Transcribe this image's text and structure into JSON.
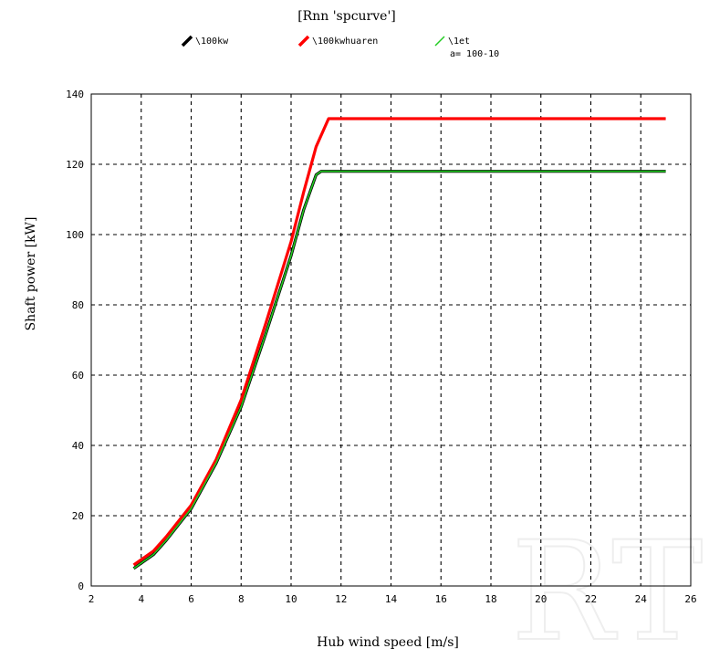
{
  "chart_data": {
    "type": "line",
    "title": "[Rnn 'spcurve']",
    "xlabel": "Hub wind speed [m/s]",
    "ylabel": "Shaft power  [kW]",
    "xlim": [
      2,
      26
    ],
    "ylim": [
      0,
      140
    ],
    "x_ticks": [
      "2",
      "4",
      "6",
      "8",
      "10",
      "12",
      "14",
      "16",
      "18",
      "20",
      "22",
      "24",
      "26"
    ],
    "y_ticks": [
      "0",
      "20",
      "40",
      "60",
      "80",
      "100",
      "120",
      "140"
    ],
    "grid": true,
    "legend_position": "top",
    "legend_note": "a= 100-10",
    "series": [
      {
        "name": "\\100kw",
        "color": "#000000",
        "x": [
          3.7,
          4.5,
          5,
          6,
          7,
          8,
          9,
          10,
          10.5,
          11,
          11.2,
          12,
          14,
          16,
          18,
          20,
          22,
          24,
          25
        ],
        "y": [
          5,
          9,
          13,
          22,
          35,
          51,
          72,
          94,
          107,
          117,
          118,
          118,
          118,
          118,
          118,
          118,
          118,
          118,
          118
        ]
      },
      {
        "name": "\\100kwhuaren",
        "color": "#ff0000",
        "x": [
          3.7,
          4.5,
          5,
          6,
          7,
          8,
          9,
          10,
          10.5,
          11,
          11.5,
          12,
          14,
          16,
          18,
          20,
          22,
          24,
          25
        ],
        "y": [
          6,
          10,
          14,
          23,
          36,
          53,
          75,
          98,
          112,
          125,
          133,
          133,
          133,
          133,
          133,
          133,
          133,
          133,
          133
        ]
      },
      {
        "name": "\\1et",
        "color": "#22cc22",
        "x": [
          3.7,
          4.5,
          5,
          6,
          7,
          8,
          9,
          10,
          10.5,
          11,
          11.2,
          12,
          14,
          16,
          18,
          20,
          22,
          24,
          25
        ],
        "y": [
          5,
          9,
          13,
          22,
          35,
          51,
          72,
          94,
          107,
          117,
          118,
          118,
          118,
          118,
          118,
          118,
          118,
          118,
          118
        ]
      }
    ]
  }
}
